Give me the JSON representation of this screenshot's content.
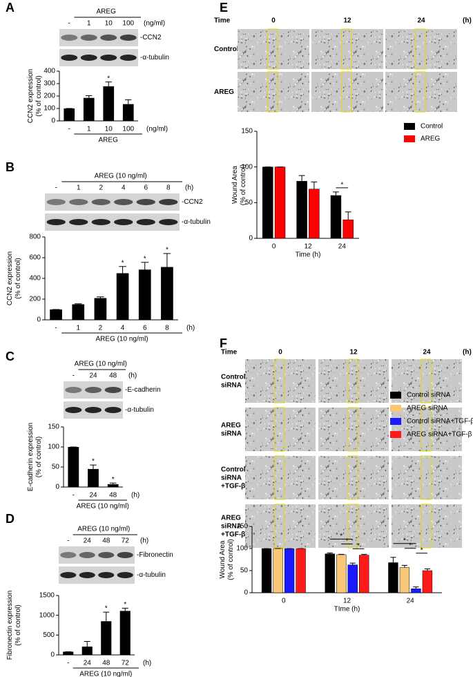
{
  "chart_data": [
    {
      "type": "bar",
      "panel": "A",
      "blot": {
        "header": "AREG",
        "lanes": [
          "-",
          "1",
          "10",
          "100"
        ],
        "unit": "(ng/ml)",
        "bands": [
          "-CCN2",
          "-α-tubulin"
        ]
      },
      "ylabel": [
        "CCN2 expression",
        "(% of control)"
      ],
      "categories": [
        "-",
        "1",
        "10",
        "100"
      ],
      "values": [
        100,
        185,
        278,
        135
      ],
      "errors": [
        0,
        18,
        35,
        35
      ],
      "stars": [
        null,
        null,
        "*",
        null
      ],
      "color": "#000000",
      "x_unit": "(ng/ml)",
      "group_label": "AREG",
      "ylim": [
        0,
        400
      ],
      "yticks": [
        0,
        100,
        200,
        300,
        400
      ]
    },
    {
      "type": "bar",
      "panel": "B",
      "blot": {
        "header": "AREG (10 ng/ml)",
        "lanes": [
          "-",
          "1",
          "2",
          "4",
          "6",
          "8"
        ],
        "unit": "(h)",
        "bands": [
          "-CCN2",
          "-α-tubulin"
        ]
      },
      "ylabel": [
        "CCN2 expression",
        "(% of control)"
      ],
      "categories": [
        "-",
        "1",
        "2",
        "4",
        "6",
        "8"
      ],
      "values": [
        100,
        150,
        210,
        450,
        485,
        510
      ],
      "errors": [
        0,
        5,
        12,
        65,
        70,
        130
      ],
      "stars": [
        null,
        null,
        null,
        "*",
        "*",
        "*"
      ],
      "color": "#000000",
      "x_unit": "(h)",
      "group_label": "AREG (10 ng/ml)",
      "ylim": [
        0,
        800
      ],
      "yticks": [
        0,
        200,
        400,
        600,
        800
      ]
    },
    {
      "type": "bar",
      "panel": "C",
      "blot": {
        "header": "AREG (10 ng/ml)",
        "lanes": [
          "-",
          "24",
          "48"
        ],
        "unit": "(h)",
        "bands": [
          "-E-cadherin",
          "-α-tubulin"
        ]
      },
      "ylabel": [
        "E-cadherin expression",
        "(% of control)"
      ],
      "categories": [
        "-",
        "24",
        "48"
      ],
      "values": [
        100,
        45,
        7
      ],
      "errors": [
        0,
        10,
        3
      ],
      "stars": [
        null,
        "*",
        "*"
      ],
      "color": "#000000",
      "x_unit": "(h)",
      "group_label": "AREG (10 ng/ml)",
      "ylim": [
        0,
        150
      ],
      "yticks": [
        0,
        50,
        100,
        150
      ]
    },
    {
      "type": "bar",
      "panel": "D",
      "blot": {
        "header": "AREG (10 ng/ml)",
        "lanes": [
          "-",
          "24",
          "48",
          "72"
        ],
        "unit": "(h)",
        "bands": [
          "-Fibronectin",
          "-α-tubulin"
        ]
      },
      "ylabel": [
        "Fibronectin expression",
        "(% of control)"
      ],
      "categories": [
        "-",
        "24",
        "48",
        "72"
      ],
      "values": [
        80,
        210,
        850,
        1110
      ],
      "errors": [
        0,
        130,
        230,
        70
      ],
      "stars": [
        null,
        null,
        "*",
        "*"
      ],
      "color": "#000000",
      "x_unit": "(h)",
      "group_label": "AREG (10 ng/ml)",
      "ylim": [
        0,
        1500
      ],
      "yticks": [
        0,
        500,
        1000,
        1500
      ]
    },
    {
      "type": "grouped_bar",
      "panel": "E",
      "images": {
        "time_label": "Time",
        "times": [
          "0",
          "12",
          "24"
        ],
        "unit": "(h)",
        "rows": [
          [
            "Control"
          ],
          [
            "AREG"
          ]
        ]
      },
      "ylabel": [
        "Wound Area",
        "(% of control)"
      ],
      "xlabel": "Time (h)",
      "categories": [
        "0",
        "12",
        "24"
      ],
      "series": [
        {
          "name": "Control",
          "color": "#000000",
          "values": [
            100,
            80,
            60
          ],
          "errors": [
            0,
            8,
            5
          ]
        },
        {
          "name": "AREG",
          "color": "#ff0000",
          "values": [
            100,
            69,
            26
          ],
          "errors": [
            0,
            10,
            11
          ]
        }
      ],
      "brackets": [
        {
          "label": "*",
          "from": "Control",
          "to": "AREG",
          "category": "24"
        }
      ],
      "ylim": [
        0,
        150
      ],
      "yticks": [
        0,
        50,
        100,
        150
      ]
    },
    {
      "type": "grouped_bar",
      "panel": "F",
      "images": {
        "time_label": "Time",
        "times": [
          "0",
          "12",
          "24"
        ],
        "unit": "(h)",
        "rows": [
          [
            "Control",
            "siRNA"
          ],
          [
            "AREG",
            "siRNA"
          ],
          [
            "Control",
            "siRNA",
            "+TGF-β"
          ],
          [
            "AREG",
            "siRNA",
            "+TGF-β"
          ]
        ]
      },
      "ylabel": [
        "Wound Area",
        "(% of control)"
      ],
      "xlabel": "TIme (h)",
      "categories": [
        "0",
        "12",
        "24"
      ],
      "series": [
        {
          "name": "Control siRNA",
          "color": "#000000",
          "values": [
            100,
            88,
            68
          ],
          "errors": [
            0,
            2,
            12
          ]
        },
        {
          "name": "AREG siRNA",
          "color": "#f8c878",
          "values": [
            100,
            86,
            57
          ],
          "errors": [
            0,
            1,
            5
          ]
        },
        {
          "name": "Control siRNA+TGF-β",
          "color": "#1a1aff",
          "values": [
            100,
            63,
            9
          ],
          "errors": [
            0,
            4,
            4
          ]
        },
        {
          "name": "AREG siRNA+TGF-β",
          "color": "#ff1a1a",
          "values": [
            100,
            85,
            50
          ],
          "errors": [
            0,
            2,
            4
          ]
        }
      ],
      "brackets": [
        {
          "label": "*",
          "from": "Control siRNA",
          "to": "Control siRNA+TGF-β",
          "category": "12"
        },
        {
          "label": "*",
          "from": "AREG siRNA",
          "to": "Control siRNA+TGF-β",
          "category": "12"
        },
        {
          "label": "*",
          "from": "Control siRNA+TGF-β",
          "to": "AREG siRNA+TGF-β",
          "category": "12"
        },
        {
          "label": "*",
          "from": "Control siRNA",
          "to": "Control siRNA+TGF-β",
          "category": "24"
        },
        {
          "label": "*",
          "from": "AREG siRNA",
          "to": "Control siRNA+TGF-β",
          "category": "24"
        },
        {
          "label": "*",
          "from": "Control siRNA+TGF-β",
          "to": "AREG siRNA+TGF-β",
          "category": "24"
        }
      ],
      "ylim": [
        0,
        150
      ],
      "yticks": [
        0,
        50,
        100,
        150
      ]
    }
  ]
}
